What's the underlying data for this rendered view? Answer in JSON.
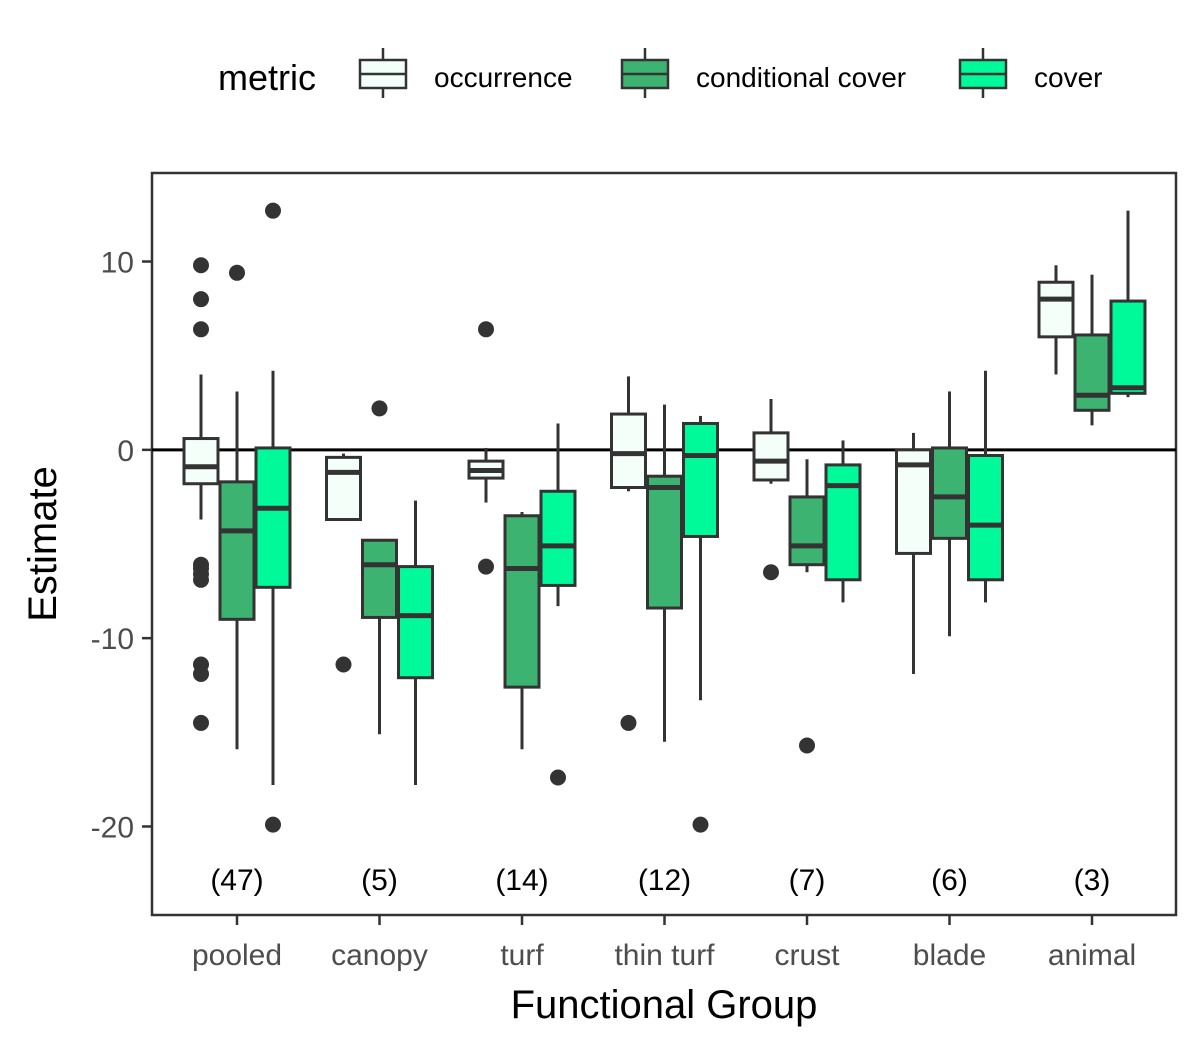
{
  "chart_data": {
    "type": "boxplot",
    "title": "",
    "xlabel": "Functional Group",
    "ylabel": "Estimate",
    "ylim": [
      -24.7,
      14.7
    ],
    "yticks": [
      10,
      0,
      -10,
      -20
    ],
    "ytick_labels": [
      "10",
      "0",
      "-10",
      "-20"
    ],
    "reference_line_y": 0,
    "grid": false,
    "legend": {
      "title": "metric",
      "position": "top",
      "entries": [
        "occurrence",
        "conditional cover",
        "cover"
      ]
    },
    "categories": [
      "pooled",
      "canopy",
      "turf",
      "thin turf",
      "crust",
      "blade",
      "animal"
    ],
    "counts": [
      "(47)",
      "(5)",
      "(14)",
      "(12)",
      "(7)",
      "(6)",
      "(3)"
    ],
    "counts_y": -22.8,
    "series": [
      {
        "name": "occurrence",
        "color": "#f5fffa",
        "boxes": [
          {
            "q1": -1.8,
            "median": -0.9,
            "q3": 0.6,
            "whisker_low": -3.7,
            "whisker_high": 4.0,
            "outliers": [
              9.8,
              8.0,
              6.4,
              -6.1,
              -6.3,
              -6.6,
              -6.9,
              -11.4,
              -11.9,
              -14.5
            ]
          },
          {
            "q1": -3.7,
            "median": -1.2,
            "q3": -0.4,
            "whisker_low": -3.7,
            "whisker_high": -0.2,
            "outliers": [
              -11.4
            ]
          },
          {
            "q1": -1.5,
            "median": -1.1,
            "q3": -0.6,
            "whisker_low": -2.8,
            "whisker_high": 0.1,
            "outliers": [
              6.4,
              -6.2
            ]
          },
          {
            "q1": -2.0,
            "median": -0.2,
            "q3": 1.9,
            "whisker_low": -2.2,
            "whisker_high": 3.9,
            "outliers": [
              -14.5
            ]
          },
          {
            "q1": -1.6,
            "median": -0.6,
            "q3": 0.9,
            "whisker_low": -1.8,
            "whisker_high": 2.7,
            "outliers": [
              -6.5
            ]
          },
          {
            "q1": -5.5,
            "median": -0.8,
            "q3": 0.0,
            "whisker_low": -11.9,
            "whisker_high": 0.9,
            "outliers": []
          },
          {
            "q1": 6.0,
            "median": 8.0,
            "q3": 8.9,
            "whisker_low": 4.0,
            "whisker_high": 9.8,
            "outliers": []
          }
        ]
      },
      {
        "name": "conditional cover",
        "color": "#3cb371",
        "boxes": [
          {
            "q1": -9.0,
            "median": -4.3,
            "q3": -1.7,
            "whisker_low": -15.9,
            "whisker_high": 3.1,
            "outliers": [
              9.4
            ]
          },
          {
            "q1": -8.9,
            "median": -6.1,
            "q3": -4.8,
            "whisker_low": -15.1,
            "whisker_high": -4.8,
            "outliers": [
              2.2
            ]
          },
          {
            "q1": -12.6,
            "median": -6.3,
            "q3": -3.5,
            "whisker_low": -15.9,
            "whisker_high": -3.3,
            "outliers": []
          },
          {
            "q1": -8.4,
            "median": -2.0,
            "q3": -1.4,
            "whisker_low": -15.5,
            "whisker_high": 2.4,
            "outliers": []
          },
          {
            "q1": -6.1,
            "median": -5.1,
            "q3": -2.5,
            "whisker_low": -6.5,
            "whisker_high": -0.5,
            "outliers": [
              -15.7
            ]
          },
          {
            "q1": -4.7,
            "median": -2.5,
            "q3": 0.1,
            "whisker_low": -9.9,
            "whisker_high": 3.1,
            "outliers": []
          },
          {
            "q1": 2.1,
            "median": 2.9,
            "q3": 6.1,
            "whisker_low": 1.3,
            "whisker_high": 9.3,
            "outliers": []
          }
        ]
      },
      {
        "name": "cover",
        "color": "#00fa9a",
        "boxes": [
          {
            "q1": -7.3,
            "median": -3.1,
            "q3": 0.1,
            "whisker_low": -17.8,
            "whisker_high": 4.2,
            "outliers": [
              12.7,
              -19.9
            ]
          },
          {
            "q1": -12.1,
            "median": -8.8,
            "q3": -6.2,
            "whisker_low": -17.8,
            "whisker_high": -2.7,
            "outliers": []
          },
          {
            "q1": -7.2,
            "median": -5.1,
            "q3": -2.2,
            "whisker_low": -8.3,
            "whisker_high": 1.4,
            "outliers": [
              -17.4
            ]
          },
          {
            "q1": -4.6,
            "median": -0.3,
            "q3": 1.4,
            "whisker_low": -13.3,
            "whisker_high": 1.8,
            "outliers": [
              -19.9
            ]
          },
          {
            "q1": -6.9,
            "median": -1.9,
            "q3": -0.8,
            "whisker_low": -8.1,
            "whisker_high": 0.5,
            "outliers": []
          },
          {
            "q1": -6.9,
            "median": -4.0,
            "q3": -0.3,
            "whisker_low": -8.1,
            "whisker_high": 4.2,
            "outliers": []
          },
          {
            "q1": 3.0,
            "median": 3.3,
            "q3": 7.9,
            "whisker_low": 2.8,
            "whisker_high": 12.7,
            "outliers": []
          }
        ]
      }
    ]
  }
}
